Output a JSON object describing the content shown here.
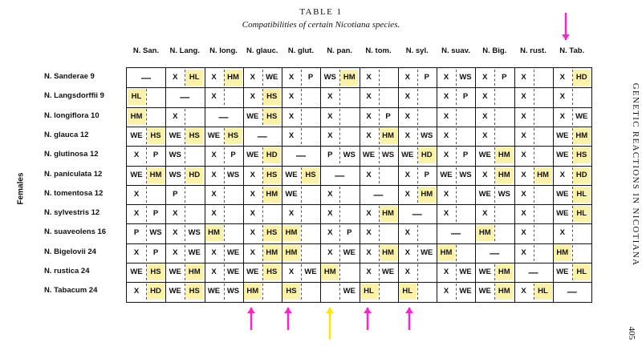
{
  "title": "TABLE 1",
  "subtitle": "Compatibilities of certain Nicotiana species.",
  "axis_label": "Females",
  "side_text": "GENETIC REACTIONS IN NICOTIANA",
  "page_number": "405",
  "highlight_color": "#fbf2a8",
  "arrow_colors": {
    "top": "#ff22c8",
    "bottom": "#ff22c8",
    "special": "#ffe600"
  },
  "columns": [
    "N. San.",
    "N. Lang.",
    "N. long.",
    "N. glauc.",
    "N. glut.",
    "N. pan.",
    "N. tom.",
    "N. syl.",
    "N. suav.",
    "N. Big.",
    "N. rust.",
    "N. Tab."
  ],
  "rows": [
    {
      "label": "N. Sanderae 9",
      "cells": [
        [
          "—",
          ""
        ],
        [
          "X",
          "HL"
        ],
        [
          "X",
          "HM"
        ],
        [
          "X",
          "WE"
        ],
        [
          "X",
          "P"
        ],
        [
          "WS",
          "HM"
        ],
        [
          "X",
          ""
        ],
        [
          "X",
          "P"
        ],
        [
          "X",
          "WS"
        ],
        [
          "X",
          "P"
        ],
        [
          "X",
          ""
        ],
        [
          "X",
          "HD"
        ]
      ]
    },
    {
      "label": "N. Langsdorffii 9",
      "cells": [
        [
          "HL",
          ""
        ],
        [
          "—",
          ""
        ],
        [
          "X",
          ""
        ],
        [
          "X",
          "HS"
        ],
        [
          "X",
          ""
        ],
        [
          "X",
          ""
        ],
        [
          "X",
          ""
        ],
        [
          "X",
          ""
        ],
        [
          "X",
          "P"
        ],
        [
          "X",
          ""
        ],
        [
          "X",
          ""
        ],
        [
          "X",
          ""
        ]
      ]
    },
    {
      "label": "N. longiflora 10",
      "cells": [
        [
          "HM",
          ""
        ],
        [
          "X",
          ""
        ],
        [
          "—",
          ""
        ],
        [
          "WE",
          "HS"
        ],
        [
          "X",
          ""
        ],
        [
          "X",
          ""
        ],
        [
          "X",
          "P"
        ],
        [
          "X",
          ""
        ],
        [
          "X",
          ""
        ],
        [
          "X",
          ""
        ],
        [
          "X",
          ""
        ],
        [
          "X",
          "WE"
        ]
      ]
    },
    {
      "label": "N. glauca 12",
      "cells": [
        [
          "WE",
          "HS"
        ],
        [
          "WE",
          "HS"
        ],
        [
          "WE",
          "HS"
        ],
        [
          "—",
          ""
        ],
        [
          "X",
          ""
        ],
        [
          "X",
          ""
        ],
        [
          "X",
          "HM"
        ],
        [
          "X",
          "WS"
        ],
        [
          "X",
          ""
        ],
        [
          "X",
          ""
        ],
        [
          "X",
          ""
        ],
        [
          "WE",
          "HM"
        ]
      ]
    },
    {
      "label": "N. glutinosa 12",
      "cells": [
        [
          "X",
          "P"
        ],
        [
          "WS",
          ""
        ],
        [
          "X",
          "P"
        ],
        [
          "WE",
          "HD"
        ],
        [
          "—",
          ""
        ],
        [
          "P",
          "WS"
        ],
        [
          "WE",
          "WS"
        ],
        [
          "WE",
          "HD"
        ],
        [
          "X",
          "P"
        ],
        [
          "WE",
          "HM"
        ],
        [
          "X",
          ""
        ],
        [
          "WE",
          "HS"
        ]
      ]
    },
    {
      "label": "N. paniculata 12",
      "cells": [
        [
          "WE",
          "HM"
        ],
        [
          "WS",
          "HD"
        ],
        [
          "X",
          "WS"
        ],
        [
          "X",
          "HS"
        ],
        [
          "WE",
          "HS"
        ],
        [
          "—",
          ""
        ],
        [
          "X",
          ""
        ],
        [
          "X",
          "P"
        ],
        [
          "WE",
          "WS"
        ],
        [
          "X",
          "HM"
        ],
        [
          "X",
          "HM"
        ],
        [
          "X",
          "HD"
        ]
      ]
    },
    {
      "label": "N. tomentosa 12",
      "cells": [
        [
          "X",
          ""
        ],
        [
          "P",
          ""
        ],
        [
          "X",
          ""
        ],
        [
          "X",
          "HM"
        ],
        [
          "WE",
          ""
        ],
        [
          "X",
          ""
        ],
        [
          "—",
          ""
        ],
        [
          "X",
          "HM"
        ],
        [
          "X",
          ""
        ],
        [
          "WE",
          "WS"
        ],
        [
          "X",
          ""
        ],
        [
          "WE",
          "HL"
        ]
      ]
    },
    {
      "label": "N. sylvestris 12",
      "cells": [
        [
          "X",
          "P"
        ],
        [
          "X",
          ""
        ],
        [
          "X",
          ""
        ],
        [
          "X",
          ""
        ],
        [
          "X",
          ""
        ],
        [
          "X",
          ""
        ],
        [
          "X",
          "HM"
        ],
        [
          "—",
          ""
        ],
        [
          "X",
          ""
        ],
        [
          "X",
          ""
        ],
        [
          "X",
          ""
        ],
        [
          "WE",
          "HL"
        ]
      ]
    },
    {
      "label": "N. suaveolens 16",
      "cells": [
        [
          "P",
          "WS"
        ],
        [
          "X",
          "WS"
        ],
        [
          "HM",
          ""
        ],
        [
          "X",
          "HS"
        ],
        [
          "HM",
          ""
        ],
        [
          "X",
          "P"
        ],
        [
          "X",
          ""
        ],
        [
          "X",
          ""
        ],
        [
          "—",
          ""
        ],
        [
          "HM",
          ""
        ],
        [
          "X",
          ""
        ],
        [
          "X",
          ""
        ]
      ]
    },
    {
      "label": "N. Bigelovii 24",
      "cells": [
        [
          "X",
          "P"
        ],
        [
          "X",
          "WE"
        ],
        [
          "X",
          "WE"
        ],
        [
          "X",
          "HM"
        ],
        [
          "HM",
          ""
        ],
        [
          "X",
          "WE"
        ],
        [
          "X",
          "HM"
        ],
        [
          "X",
          "WE"
        ],
        [
          "HM",
          ""
        ],
        [
          "—",
          ""
        ],
        [
          "X",
          ""
        ],
        [
          "HM",
          ""
        ]
      ]
    },
    {
      "label": "N. rustica 24",
      "cells": [
        [
          "WE",
          "HS"
        ],
        [
          "WE",
          "HM"
        ],
        [
          "X",
          "WE"
        ],
        [
          "WE",
          "HS"
        ],
        [
          "X",
          "WE"
        ],
        [
          "HM",
          ""
        ],
        [
          "X",
          "WE"
        ],
        [
          "X",
          ""
        ],
        [
          "X",
          "WE"
        ],
        [
          "WE",
          "HM"
        ],
        [
          "—",
          ""
        ],
        [
          "WE",
          "HL"
        ]
      ]
    },
    {
      "label": "N. Tabacum 24",
      "cells": [
        [
          "X",
          "HD"
        ],
        [
          "WE",
          "HS"
        ],
        [
          "WE",
          "WS"
        ],
        [
          "HM",
          ""
        ],
        [
          "HS",
          ""
        ],
        [
          "",
          "WE"
        ],
        [
          "HL",
          ""
        ],
        [
          "HL",
          ""
        ],
        [
          "X",
          "WE"
        ],
        [
          "WE",
          "HM"
        ],
        [
          "X",
          "HL"
        ],
        [
          "—",
          ""
        ]
      ]
    }
  ]
}
